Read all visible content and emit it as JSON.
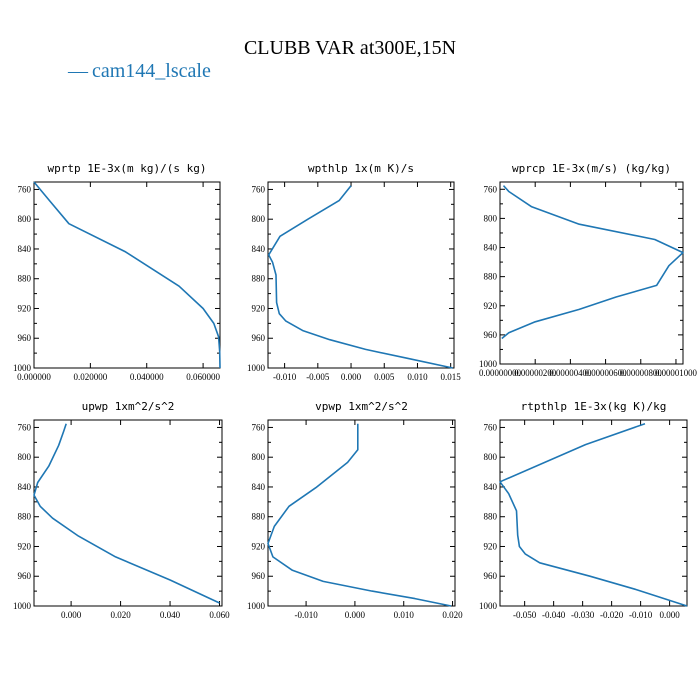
{
  "title": "CLUBB VAR at300E,15N",
  "legend": {
    "marker": "—",
    "label": "cam144_lscale",
    "color": "#1f77b4"
  },
  "chart_data": [
    {
      "type": "line",
      "title": "wprtp  1E-3x(m kg)/(s kg)",
      "xlim": [
        0.0,
        0.066
      ],
      "ylim": [
        1000,
        750
      ],
      "xticks": [
        0.0,
        0.02,
        0.04,
        0.06
      ],
      "xtick_labels": [
        "0.000000",
        "0.020000",
        "0.040000",
        "0.060000"
      ],
      "yticks": [
        760,
        800,
        840,
        880,
        920,
        960,
        1000
      ],
      "ytick_labels": [
        "760",
        "800",
        "840",
        "880",
        "920",
        "960",
        "1000"
      ],
      "series": [
        {
          "x": [
            0.0,
            0.0055,
            0.0124,
            0.0325,
            0.0515,
            0.06,
            0.0638,
            0.0655,
            0.0659,
            0.066
          ],
          "y": [
            750,
            775,
            806,
            844,
            890,
            920,
            940,
            958,
            978,
            1000
          ]
        }
      ]
    },
    {
      "type": "line",
      "title": "wpthlp  1x(m K)/s",
      "xlim": [
        -0.0125,
        0.0155
      ],
      "ylim": [
        1000,
        750
      ],
      "xticks": [
        -0.01,
        -0.005,
        0.0,
        0.005,
        0.01,
        0.015
      ],
      "xtick_labels": [
        "-0.010",
        "-0.005",
        "0.000",
        "0.005",
        "0.010",
        "0.015"
      ],
      "yticks": [
        760,
        800,
        840,
        880,
        920,
        960,
        1000
      ],
      "ytick_labels": [
        "760",
        "800",
        "840",
        "880",
        "920",
        "960",
        "1000"
      ],
      "series": [
        {
          "x": [
            0.0,
            -0.0018,
            -0.0065,
            -0.0107,
            -0.0124,
            -0.0118,
            -0.0113,
            -0.0112,
            -0.0108,
            -0.0098,
            -0.0072,
            -0.0032,
            0.0022,
            0.0085,
            0.0153
          ],
          "y": [
            755,
            775,
            800,
            823,
            848,
            858,
            875,
            912,
            927,
            937,
            950,
            962,
            975,
            987,
            1000
          ]
        }
      ]
    },
    {
      "type": "line",
      "title": "wprcp  1E-3x(m/s) (kg/kg)",
      "xlim": [
        0.0,
        1.04e-05
      ],
      "ylim": [
        1000,
        750
      ],
      "xticks": [
        0.0,
        2e-06,
        4e-06,
        6e-06,
        8e-06,
        1e-05
      ],
      "xtick_labels": [
        "0.00000000",
        "0.00000200",
        "0.00000400",
        "0.00000600",
        "0.00000800",
        "0.00001000"
      ],
      "yticks": [
        760,
        800,
        840,
        880,
        920,
        960,
        1000
      ],
      "ytick_labels": [
        "760",
        "800",
        "840",
        "880",
        "920",
        "960",
        "1000"
      ],
      "series": [
        {
          "x": [
            2e-07,
            5e-07,
            1.8e-06,
            4.5e-06,
            8.8e-06,
            1.04e-05,
            9.6e-06,
            8.9e-06,
            6.6e-06,
            4.5e-06,
            2e-06,
            5e-07,
            1e-07
          ],
          "y": [
            755,
            763,
            784,
            808,
            829,
            847,
            865,
            892,
            908,
            925,
            942,
            957,
            965
          ]
        }
      ]
    },
    {
      "type": "line",
      "title": "upwp  1xm^2/s^2",
      "xlim": [
        -0.015,
        0.061
      ],
      "ylim": [
        1000,
        750
      ],
      "xticks": [
        0.0,
        0.02,
        0.04,
        0.06
      ],
      "xtick_labels": [
        "0.000",
        "0.020",
        "0.040",
        "0.060"
      ],
      "yticks": [
        760,
        800,
        840,
        880,
        920,
        960,
        1000
      ],
      "ytick_labels": [
        "760",
        "800",
        "840",
        "880",
        "920",
        "960",
        "1000"
      ],
      "series": [
        {
          "x": [
            -0.002,
            -0.003,
            -0.005,
            -0.009,
            -0.0135,
            -0.015,
            -0.0125,
            -0.0075,
            0.003,
            0.018,
            0.04,
            0.06
          ],
          "y": [
            755,
            765,
            784,
            812,
            834,
            851,
            866,
            882,
            906,
            934,
            965,
            996
          ]
        }
      ]
    },
    {
      "type": "line",
      "title": "vpwp  1xm^2/s^2",
      "xlim": [
        -0.0178,
        0.0205
      ],
      "ylim": [
        1000,
        750
      ],
      "xticks": [
        -0.01,
        0.0,
        0.01,
        0.02
      ],
      "xtick_labels": [
        "-0.010",
        "0.000",
        "0.010",
        "0.020"
      ],
      "yticks": [
        760,
        800,
        840,
        880,
        920,
        960,
        1000
      ],
      "ytick_labels": [
        "760",
        "800",
        "840",
        "880",
        "920",
        "960",
        "1000"
      ],
      "series": [
        {
          "x": [
            0.0006,
            0.0006,
            0.0006,
            -0.0015,
            -0.008,
            -0.0135,
            -0.0165,
            -0.0178,
            -0.0168,
            -0.0128,
            -0.0065,
            0.0035,
            0.0123,
            0.0197
          ],
          "y": [
            755,
            776,
            790,
            807,
            841,
            866,
            893,
            916,
            934,
            952,
            967,
            980,
            990,
            1000
          ]
        }
      ]
    },
    {
      "type": "line",
      "title": "rtpthlp  1E-3x(kg K)/kg",
      "xlim": [
        -0.0585,
        0.006
      ],
      "ylim": [
        1000,
        750
      ],
      "xticks": [
        -0.05,
        -0.04,
        -0.03,
        -0.02,
        -0.01,
        0.0
      ],
      "xtick_labels": [
        "-0.050",
        "-0.040",
        "-0.030",
        "-0.020",
        "-0.010",
        "0.000"
      ],
      "yticks": [
        760,
        800,
        840,
        880,
        920,
        960,
        1000
      ],
      "ytick_labels": [
        "760",
        "800",
        "840",
        "880",
        "920",
        "960",
        "1000"
      ],
      "series": [
        {
          "x": [
            -0.0085,
            -0.029,
            -0.0585,
            -0.0555,
            -0.0528,
            -0.0524,
            -0.0518,
            -0.0498,
            -0.0448,
            -0.0275,
            -0.0115,
            0.006
          ],
          "y": [
            755,
            783,
            833,
            849,
            872,
            905,
            920,
            930,
            942,
            960,
            978,
            1000
          ]
        }
      ]
    }
  ]
}
